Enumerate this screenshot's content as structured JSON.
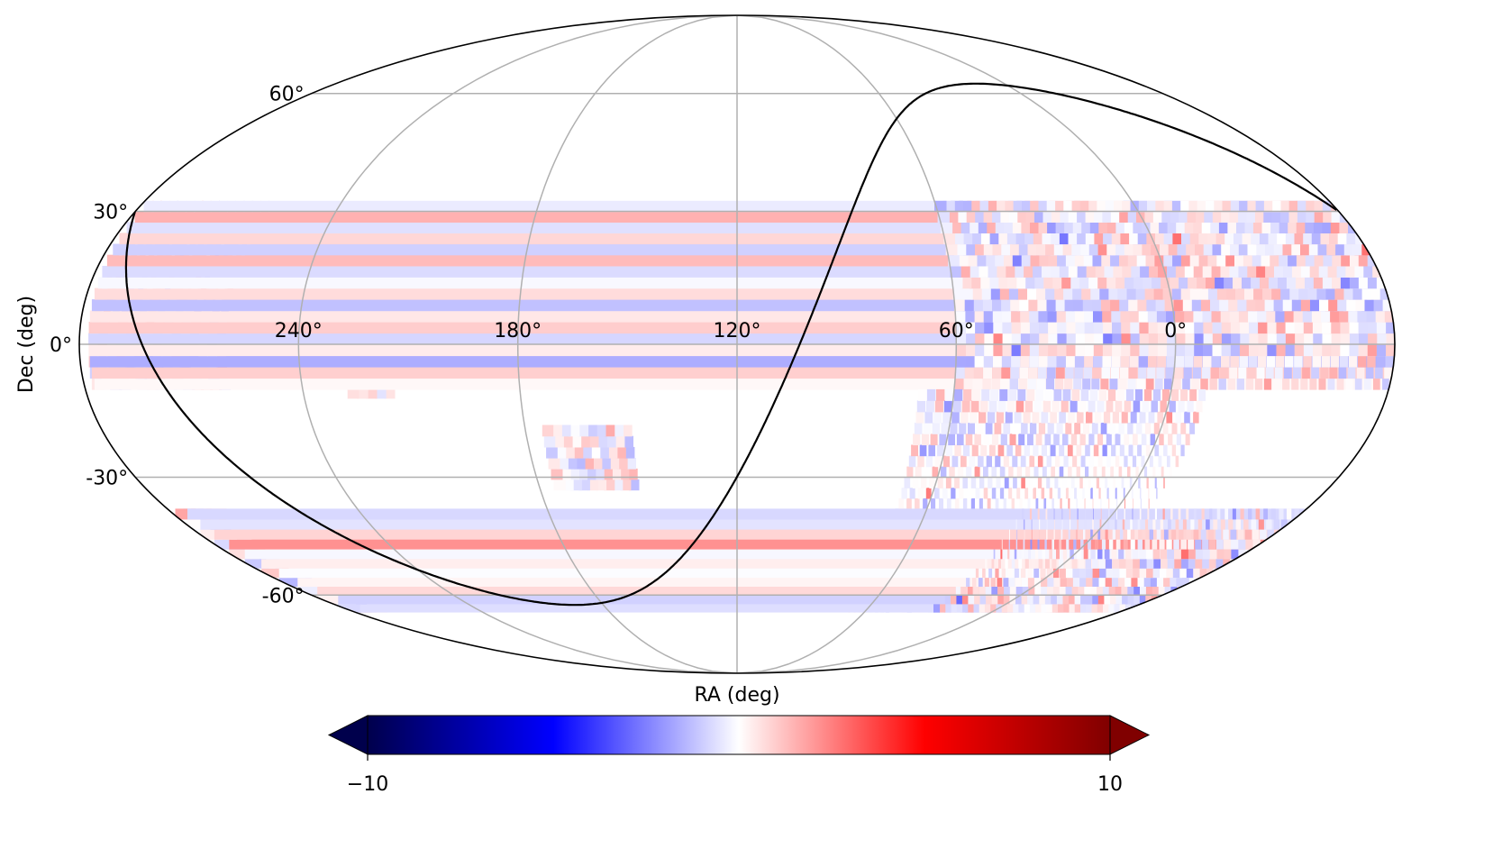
{
  "chart_data": {
    "type": "heatmap",
    "projection": "mollweide",
    "title": "",
    "xlabel": "RA (deg)",
    "ylabel": "Dec (deg)",
    "x_tick_labels": [
      "240°",
      "180°",
      "120°",
      "60°",
      "0°"
    ],
    "x_tick_values": [
      240,
      180,
      120,
      60,
      0
    ],
    "y_tick_labels": [
      "60°",
      "30°",
      "0°",
      "-30°",
      "-60°"
    ],
    "y_tick_values": [
      60,
      30,
      0,
      -30,
      -60
    ],
    "ra_direction": "increasing-left",
    "central_ra": 120,
    "grid": true,
    "galactic_plane_line": true,
    "colormap": "seismic",
    "colorbar": {
      "orientation": "horizontal",
      "placement": "bottom",
      "extend": "both",
      "vmin": -10,
      "vmax": 10,
      "tick_labels": [
        "−10",
        "10"
      ]
    },
    "footprints": [
      {
        "name": "north-strip",
        "ra": [
          275,
          100
        ],
        "dec": [
          -8,
          32
        ]
      },
      {
        "name": "north-small-patch",
        "ra": [
          227,
          215
        ],
        "dec": [
          -12,
          -8
        ]
      },
      {
        "name": "north-lower-patch",
        "ra": [
          175,
          150
        ],
        "dec": [
          -33,
          -18
        ]
      },
      {
        "name": "south-upper-lobe",
        "ra": [
          60,
          -100
        ],
        "dec": [
          -10,
          32
        ]
      },
      {
        "name": "south-main",
        "ra": [
          70,
          -10
        ],
        "dec": [
          -65,
          -10
        ]
      },
      {
        "name": "south-lower-wedge",
        "ra": [
          30,
          -75
        ],
        "dec": [
          -65,
          -38
        ]
      }
    ]
  },
  "colors": {
    "negative_extreme": "#00004c",
    "negative": "#0000ff",
    "zero": "#ffffff",
    "positive": "#ff0000",
    "positive_extreme": "#800000",
    "grid": "#b0b0b0",
    "outline": "#000000"
  }
}
